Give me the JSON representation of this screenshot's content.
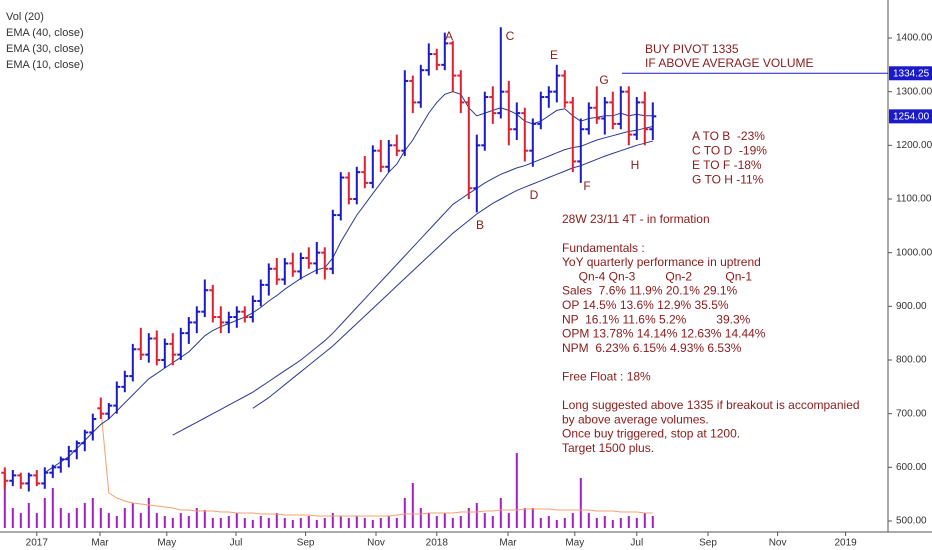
{
  "chart_data": {
    "type": "ohlc",
    "categories": [
      null,
      null,
      null,
      null,
      null,
      null,
      null,
      null,
      null,
      null,
      null,
      null,
      null,
      null,
      null,
      null,
      null,
      null,
      null,
      null,
      null,
      null,
      null,
      null,
      null,
      null,
      null,
      null,
      null,
      null,
      null,
      null,
      null,
      null,
      null,
      null,
      null,
      null,
      null,
      null,
      null,
      null,
      null,
      null,
      null,
      null,
      null,
      null,
      null,
      null,
      null,
      null,
      null,
      null,
      null,
      null,
      null,
      null,
      null,
      null,
      null,
      null,
      null,
      null,
      null,
      null,
      null,
      null,
      null,
      null,
      null,
      null,
      null,
      null,
      null,
      null,
      null,
      null,
      null,
      null,
      null,
      null
    ],
    "ohlc": {
      "up_color": "#1a1ac8",
      "down_color": "#e0202f",
      "open": [
        590,
        575,
        585,
        570,
        585,
        570,
        590,
        600,
        615,
        630,
        645,
        665,
        710,
        700,
        715,
        750,
        770,
        820,
        810,
        840,
        800,
        830,
        810,
        850,
        870,
        890,
        930,
        880,
        870,
        880,
        890,
        880,
        910,
        940,
        970,
        950,
        980,
        965,
        990,
        980,
        1000,
        970,
        1070,
        1140,
        1100,
        1150,
        1130,
        1190,
        1160,
        1200,
        1190,
        1320,
        1280,
        1340,
        1370,
        1350,
        1390,
        1330,
        1280,
        1120,
        1200,
        1290,
        1260,
        1300,
        1230,
        1260,
        1190,
        1240,
        1290,
        1300,
        1330,
        1280,
        1170,
        1230,
        1270,
        1250,
        1280,
        1240,
        1300,
        1220,
        1280,
        1230
      ],
      "high": [
        600,
        595,
        590,
        590,
        595,
        600,
        605,
        620,
        640,
        650,
        670,
        700,
        730,
        720,
        760,
        780,
        830,
        860,
        850,
        855,
        840,
        850,
        860,
        880,
        900,
        950,
        940,
        900,
        890,
        900,
        900,
        920,
        950,
        980,
        990,
        990,
        1000,
        1000,
        1010,
        1020,
        1010,
        1080,
        1150,
        1150,
        1160,
        1180,
        1200,
        1210,
        1210,
        1220,
        1340,
        1330,
        1350,
        1390,
        1380,
        1410,
        1395,
        1340,
        1290,
        1220,
        1300,
        1310,
        1420,
        1320,
        1280,
        1270,
        1250,
        1300,
        1310,
        1350,
        1340,
        1290,
        1250,
        1280,
        1310,
        1290,
        1300,
        1310,
        1310,
        1290,
        1300,
        1280
      ],
      "low": [
        560,
        565,
        560,
        555,
        565,
        560,
        580,
        590,
        600,
        615,
        630,
        650,
        690,
        690,
        700,
        740,
        760,
        800,
        795,
        790,
        785,
        790,
        800,
        830,
        850,
        880,
        870,
        850,
        850,
        860,
        870,
        870,
        900,
        920,
        940,
        940,
        955,
        950,
        970,
        960,
        950,
        960,
        1060,
        1090,
        1090,
        1120,
        1120,
        1150,
        1150,
        1180,
        1180,
        1260,
        1270,
        1330,
        1340,
        1340,
        1300,
        1260,
        1100,
        1075,
        1190,
        1240,
        1250,
        1200,
        1210,
        1170,
        1160,
        1230,
        1270,
        1280,
        1270,
        1150,
        1130,
        1220,
        1240,
        1220,
        1230,
        1230,
        1200,
        1210,
        1200,
        1210
      ],
      "close": [
        575,
        585,
        570,
        585,
        570,
        590,
        600,
        615,
        630,
        645,
        665,
        690,
        700,
        715,
        750,
        770,
        820,
        810,
        840,
        800,
        830,
        810,
        850,
        870,
        890,
        930,
        880,
        870,
        880,
        890,
        880,
        910,
        940,
        970,
        950,
        980,
        965,
        990,
        980,
        1000,
        970,
        1070,
        1140,
        1100,
        1150,
        1130,
        1190,
        1160,
        1200,
        1190,
        1320,
        1280,
        1340,
        1370,
        1350,
        1390,
        1330,
        1280,
        1120,
        1200,
        1290,
        1260,
        1300,
        1230,
        1260,
        1190,
        1240,
        1290,
        1300,
        1330,
        1280,
        1170,
        1230,
        1270,
        1250,
        1280,
        1240,
        1300,
        1220,
        1280,
        1230,
        1254
      ]
    },
    "series": [
      {
        "name": "EMA (40, close)",
        "color": "#2b3a8f",
        "values": [
          null,
          null,
          null,
          null,
          null,
          null,
          null,
          null,
          null,
          null,
          null,
          null,
          null,
          null,
          null,
          null,
          null,
          null,
          null,
          null,
          null,
          null,
          null,
          null,
          null,
          null,
          null,
          null,
          null,
          null,
          null,
          710,
          720,
          730,
          742,
          754,
          766,
          778,
          790,
          802,
          814,
          826,
          840,
          854,
          868,
          882,
          896,
          910,
          924,
          938,
          952,
          966,
          980,
          994,
          1008,
          1022,
          1036,
          1048,
          1060,
          1072,
          1082,
          1092,
          1100,
          1108,
          1116,
          1122,
          1128,
          1134,
          1140,
          1146,
          1152,
          1158,
          1162,
          1168,
          1174,
          1180,
          1185,
          1190,
          1195,
          1200,
          1204,
          1208
        ]
      },
      {
        "name": "EMA (30, close)",
        "color": "#2b3a8f",
        "values": [
          null,
          null,
          null,
          null,
          null,
          null,
          null,
          null,
          null,
          null,
          null,
          null,
          null,
          null,
          null,
          null,
          null,
          null,
          null,
          null,
          null,
          660,
          668,
          676,
          684,
          692,
          700,
          708,
          716,
          724,
          732,
          740,
          750,
          760,
          770,
          780,
          790,
          800,
          812,
          824,
          836,
          850,
          866,
          882,
          898,
          914,
          930,
          946,
          962,
          978,
          994,
          1010,
          1026,
          1042,
          1058,
          1074,
          1090,
          1100,
          1110,
          1120,
          1130,
          1138,
          1146,
          1152,
          1158,
          1162,
          1168,
          1174,
          1180,
          1186,
          1192,
          1196,
          1198,
          1204,
          1210,
          1214,
          1218,
          1222,
          1226,
          1228,
          1232,
          1235
        ]
      },
      {
        "name": "EMA (10, close)",
        "color": "#2b3a8f",
        "values": [
          null,
          null,
          null,
          null,
          null,
          590,
          600,
          610,
          620,
          635,
          650,
          665,
          680,
          690,
          705,
          720,
          735,
          750,
          765,
          775,
          785,
          795,
          805,
          815,
          830,
          845,
          855,
          862,
          868,
          874,
          880,
          888,
          898,
          910,
          920,
          932,
          942,
          952,
          960,
          968,
          972,
          990,
          1020,
          1045,
          1070,
          1090,
          1110,
          1130,
          1150,
          1165,
          1190,
          1210,
          1235,
          1260,
          1280,
          1295,
          1300,
          1295,
          1270,
          1255,
          1260,
          1265,
          1270,
          1265,
          1258,
          1245,
          1240,
          1245,
          1255,
          1265,
          1268,
          1255,
          1245,
          1250,
          1252,
          1255,
          1255,
          1260,
          1255,
          1258,
          1255,
          1255
        ]
      }
    ],
    "volume": {
      "name": "Vol (20)",
      "color": "#a020c0",
      "ma_color": "#f4a070",
      "ylim": [
        0,
        250
      ],
      "values": [
        55,
        20,
        15,
        25,
        15,
        30,
        40,
        20,
        15,
        20,
        25,
        30,
        20,
        15,
        12,
        20,
        25,
        15,
        30,
        15,
        12,
        10,
        15,
        12,
        20,
        18,
        10,
        10,
        12,
        15,
        10,
        8,
        12,
        10,
        15,
        10,
        8,
        10,
        12,
        8,
        10,
        15,
        12,
        10,
        12,
        10,
        8,
        10,
        12,
        10,
        30,
        45,
        20,
        15,
        12,
        15,
        10,
        12,
        20,
        25,
        15,
        12,
        30,
        15,
        75,
        20,
        20,
        10,
        12,
        8,
        10,
        15,
        50,
        15,
        10,
        12,
        8,
        10,
        12,
        10,
        15,
        12
      ],
      "ma_values": [
        null,
        null,
        null,
        null,
        null,
        null,
        null,
        null,
        null,
        null,
        null,
        null,
        120,
        35,
        30,
        27,
        25,
        24,
        23,
        22,
        21,
        20,
        18,
        18,
        17,
        17,
        17,
        16,
        16,
        15,
        15,
        15,
        14,
        14,
        14,
        13,
        13,
        13,
        13,
        12,
        12,
        12,
        12,
        12,
        12,
        12,
        12,
        12,
        12,
        13,
        14,
        14,
        14,
        15,
        15,
        15,
        15,
        16,
        16,
        16,
        17,
        17,
        18,
        18,
        18,
        19,
        19,
        19,
        19,
        18,
        18,
        18,
        18,
        18,
        17,
        17,
        17,
        16,
        16,
        16,
        15,
        15
      ]
    },
    "xlim": [
      -0.6,
      110.4
    ],
    "xticks": [
      {
        "value": 4,
        "label": "2017"
      },
      {
        "value": 11.9,
        "label": "Mar"
      },
      {
        "value": 20.25,
        "label": "May"
      },
      {
        "value": 28.9,
        "label": "Jul"
      },
      {
        "value": 37.6,
        "label": "Sep"
      },
      {
        "value": 46.4,
        "label": "Nov"
      },
      {
        "value": 54,
        "label": "2018"
      },
      {
        "value": 62.9,
        "label": "Mar"
      },
      {
        "value": 71.25,
        "label": "May"
      },
      {
        "value": 79,
        "label": "Jul"
      },
      {
        "value": 87.9,
        "label": "Sep"
      },
      {
        "value": 96.6,
        "label": "Nov"
      },
      {
        "value": 105.1,
        "label": "2019"
      }
    ],
    "ylim": [
      479.5,
      1470.8
    ],
    "yticks": [
      {
        "value": 1400,
        "label": "1400.00"
      },
      {
        "value": 1300,
        "label": "1300.00"
      },
      {
        "value": 1200,
        "label": "1200.00"
      },
      {
        "value": 1100,
        "label": "1100.00"
      },
      {
        "value": 1000,
        "label": "1000.00"
      },
      {
        "value": 900,
        "label": "900.00"
      },
      {
        "value": 800,
        "label": "800.00"
      },
      {
        "value": 700,
        "label": "700.00"
      },
      {
        "value": 600,
        "label": "600.00"
      },
      {
        "value": 500,
        "label": "500.00"
      }
    ],
    "pivot_line": {
      "value": 1334.25,
      "label": "1334.25",
      "color": "#1a1ac8"
    },
    "last_price": {
      "value": 1254,
      "label": "1254.00",
      "color": "#1a1ac8"
    },
    "point_labels": [
      "A",
      "B",
      "C",
      "D",
      "E",
      "F",
      "G",
      "H"
    ],
    "pivot_note": [
      "BUY PIVOT 1335",
      "IF ABOVE AVERAGE VOLUME"
    ],
    "swing_notes": [
      "A TO B  -23%",
      "C TO D  -19%",
      "E TO F -18%",
      "G TO H -11%"
    ],
    "body_notes": [
      "28W 23/11 4T - in formation",
      "Fundamentals :",
      "YoY quarterly performance in uptrend",
      "     Qn-4 Qn-3         Qn-2          Qn-1",
      "Sales  7.6% 11.9% 20.1% 29.1%",
      "OP 14.5% 13.6% 12.9% 35.5%",
      "NP  16.1% 11.6% 5.2%         39.3%",
      "OPM 13.78% 14.14% 12.63% 14.44%",
      "NPM  6.23% 6.15% 4.93% 6.53%",
      "Free Float : 18%",
      "Long suggested above 1335 if breakout is accompanied",
      "by above average volumes.",
      "Once buy triggered, stop at 1200.",
      "Target 1500 plus."
    ]
  }
}
